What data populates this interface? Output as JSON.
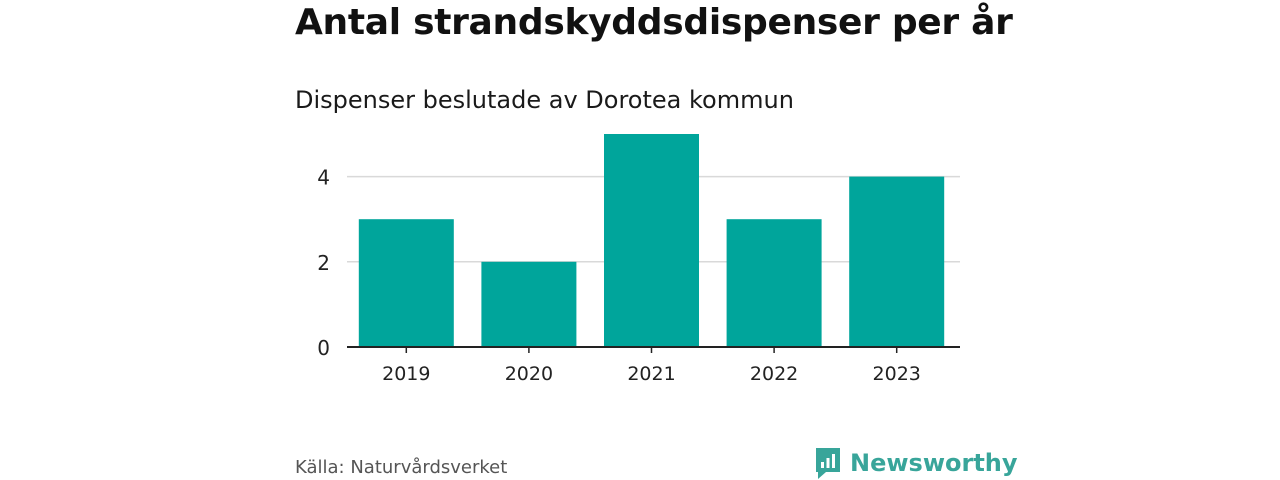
{
  "colors": {
    "bar": "#00a59b",
    "brand": "#38a59a",
    "grid": "#d9d9d9",
    "axis": "#222222"
  },
  "chart_data": {
    "type": "bar",
    "title": "Antal strandskyddsdispenser per år",
    "subtitle": "Dispenser beslutade av Dorotea kommun",
    "categories": [
      "2019",
      "2020",
      "2021",
      "2022",
      "2023"
    ],
    "values": [
      3,
      2,
      5,
      3,
      4
    ],
    "ylim": [
      0,
      5
    ],
    "yticks": [
      0,
      2,
      4
    ],
    "xlabel": "",
    "ylabel": "",
    "grid": true
  },
  "footer": {
    "source": "Källa: Naturvårdsverket",
    "brand": "Newsworthy",
    "brand_icon": "bar-chart-speech-bubble-icon"
  }
}
